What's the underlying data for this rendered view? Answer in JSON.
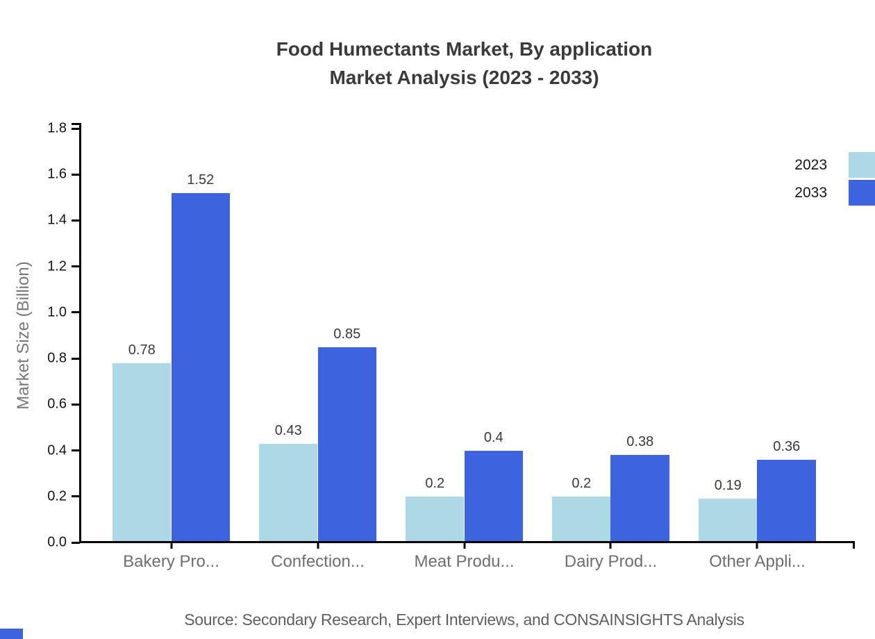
{
  "chart_data": {
    "type": "bar",
    "title": "Food Humectants Market, By application",
    "subtitle": "Market Analysis (2023 - 2033)",
    "categories": [
      "Bakery Pro...",
      "Confection...",
      "Meat Produ...",
      "Dairy Prod...",
      "Other Appli..."
    ],
    "series": [
      {
        "name": "2023",
        "color": "#ADD8E6",
        "values": [
          0.78,
          0.43,
          0.2,
          0.2,
          0.19
        ],
        "labels": [
          "0.78",
          "0.43",
          "0.2",
          "0.2",
          "0.19"
        ]
      },
      {
        "name": "2033",
        "color": "#3E63DE",
        "values": [
          1.52,
          0.85,
          0.4,
          0.38,
          0.36
        ],
        "labels": [
          "1.52",
          "0.85",
          "0.4",
          "0.38",
          "0.36"
        ]
      }
    ],
    "ylabel": "Market Size (Billion)",
    "ylim": [
      0,
      1.8
    ],
    "ytick_step": 0.2,
    "yticks": [
      "0.0",
      "0.2",
      "0.4",
      "0.6",
      "0.8",
      "1.0",
      "1.2",
      "1.4",
      "1.6",
      "1.8"
    ],
    "grid": false,
    "legend_position": "top-right",
    "source": "Source: Secondary Research, Expert Interviews, and CONSAINSIGHTS Analysis"
  },
  "colors": {
    "axis": "#000000",
    "title_text": "#3a3a3a",
    "tick_text": "#141414",
    "category_text": "#6e6e6e",
    "value_label_text": "#3a3a3a",
    "source_text": "#5f5f5f",
    "series_2023": "#ADD8E6",
    "series_2033": "#3E63DE",
    "corner_mark": "#3E63DE"
  }
}
